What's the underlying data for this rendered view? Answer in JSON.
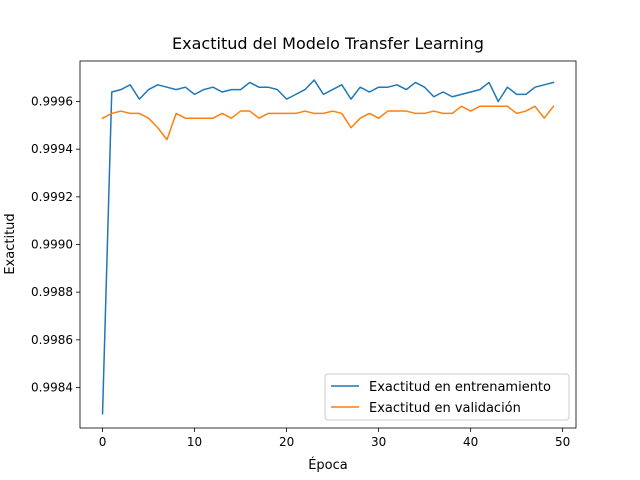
{
  "chart_data": {
    "type": "line",
    "title": "Exactitud del Modelo Transfer Learning",
    "xlabel": "Época",
    "ylabel": "Exactitud",
    "xlim": [
      -2.45,
      51.45
    ],
    "ylim": [
      0.99823,
      0.99977
    ],
    "x_ticks": [
      0,
      10,
      20,
      30,
      40,
      50
    ],
    "x_tick_labels": [
      "0",
      "10",
      "20",
      "30",
      "40",
      "50"
    ],
    "y_ticks": [
      0.9984,
      0.9986,
      0.9988,
      0.999,
      0.9992,
      0.9994,
      0.9996
    ],
    "y_tick_labels": [
      "0.9984",
      "0.9986",
      "0.9988",
      "0.9990",
      "0.9992",
      "0.9994",
      "0.9996"
    ],
    "grid": false,
    "legend_position": "lower-right",
    "x": [
      0,
      1,
      2,
      3,
      4,
      5,
      6,
      7,
      8,
      9,
      10,
      11,
      12,
      13,
      14,
      15,
      16,
      17,
      18,
      19,
      20,
      21,
      22,
      23,
      24,
      25,
      26,
      27,
      28,
      29,
      30,
      31,
      32,
      33,
      34,
      35,
      36,
      37,
      38,
      39,
      40,
      41,
      42,
      43,
      44,
      45,
      46,
      47,
      48,
      49
    ],
    "series": [
      {
        "name": "Exactitud en entrenamiento",
        "color": "#1f77b4",
        "values": [
          0.99829,
          0.99964,
          0.99965,
          0.99967,
          0.99961,
          0.99965,
          0.99967,
          0.99966,
          0.99965,
          0.99966,
          0.99963,
          0.99965,
          0.99966,
          0.99964,
          0.99965,
          0.99965,
          0.99968,
          0.99966,
          0.99966,
          0.99965,
          0.99961,
          0.99963,
          0.99965,
          0.99969,
          0.99963,
          0.99965,
          0.99967,
          0.99961,
          0.99966,
          0.99964,
          0.99966,
          0.99966,
          0.99967,
          0.99965,
          0.99968,
          0.99966,
          0.99962,
          0.99964,
          0.99962,
          0.99963,
          0.99964,
          0.99965,
          0.99968,
          0.9996,
          0.99966,
          0.99963,
          0.99963,
          0.99966,
          0.99967,
          0.99968
        ]
      },
      {
        "name": "Exactitud en validación",
        "color": "#ff7f0e",
        "values": [
          0.99953,
          0.99955,
          0.99956,
          0.99955,
          0.99955,
          0.99953,
          0.99949,
          0.99944,
          0.99955,
          0.99953,
          0.99953,
          0.99953,
          0.99953,
          0.99955,
          0.99953,
          0.99956,
          0.99956,
          0.99953,
          0.99955,
          0.99955,
          0.99955,
          0.99955,
          0.99956,
          0.99955,
          0.99955,
          0.99956,
          0.99955,
          0.99949,
          0.99953,
          0.99955,
          0.99953,
          0.99956,
          0.99956,
          0.99956,
          0.99955,
          0.99955,
          0.99956,
          0.99955,
          0.99955,
          0.99958,
          0.99956,
          0.99958,
          0.99958,
          0.99958,
          0.99958,
          0.99955,
          0.99956,
          0.99958,
          0.99953,
          0.99958
        ]
      }
    ]
  }
}
